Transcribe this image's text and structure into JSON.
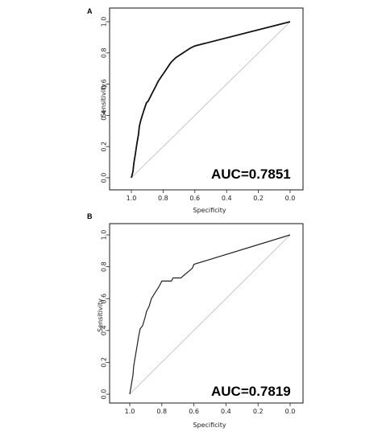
{
  "chart_data": [
    {
      "panel": "A",
      "type": "line",
      "xlabel": "Specificity",
      "ylabel": "Sensitivity",
      "xlim": [
        1.0,
        0.0
      ],
      "ylim": [
        0.0,
        1.0
      ],
      "x_ticks": [
        "1.0",
        "0.8",
        "0.6",
        "0.4",
        "0.2",
        "0.0"
      ],
      "y_ticks": [
        "0.0",
        "0.2",
        "0.4",
        "0.6",
        "0.8",
        "1.0"
      ],
      "annotation": "AUC=0.7851",
      "reference_line": "diagonal",
      "series": [
        {
          "x": [
            1.0,
            0.99,
            0.985,
            0.975,
            0.965,
            0.955,
            0.95,
            0.94,
            0.925,
            0.915,
            0.905,
            0.895,
            0.885,
            0.87,
            0.85,
            0.83,
            0.81,
            0.79,
            0.77,
            0.75,
            0.72,
            0.69,
            0.66,
            0.63,
            0.6,
            0.0
          ],
          "y": [
            0.0,
            0.04,
            0.09,
            0.15,
            0.22,
            0.28,
            0.33,
            0.37,
            0.42,
            0.45,
            0.48,
            0.49,
            0.51,
            0.54,
            0.58,
            0.62,
            0.65,
            0.68,
            0.71,
            0.74,
            0.77,
            0.79,
            0.81,
            0.83,
            0.845,
            1.0
          ]
        }
      ]
    },
    {
      "panel": "B",
      "type": "line",
      "xlabel": "Specificity",
      "ylabel": "Sensitivity",
      "xlim": [
        1.0,
        0.0
      ],
      "ylim": [
        0.0,
        1.0
      ],
      "x_ticks": [
        "1.0",
        "0.8",
        "0.6",
        "0.4",
        "0.2",
        "0.0"
      ],
      "y_ticks": [
        "0.0",
        "0.2",
        "0.4",
        "0.6",
        "0.8",
        "1.0"
      ],
      "annotation": "AUC=0.7819",
      "reference_line": "diagonal",
      "series": [
        {
          "x": [
            1.0,
            0.995,
            0.99,
            0.98,
            0.975,
            0.965,
            0.955,
            0.945,
            0.935,
            0.92,
            0.905,
            0.895,
            0.88,
            0.865,
            0.84,
            0.815,
            0.8,
            0.74,
            0.73,
            0.68,
            0.67,
            0.61,
            0.6,
            0.0
          ],
          "y": [
            0.0,
            0.03,
            0.06,
            0.12,
            0.18,
            0.24,
            0.3,
            0.36,
            0.41,
            0.43,
            0.48,
            0.52,
            0.55,
            0.6,
            0.64,
            0.68,
            0.71,
            0.71,
            0.73,
            0.73,
            0.74,
            0.79,
            0.815,
            1.0
          ]
        }
      ]
    }
  ]
}
